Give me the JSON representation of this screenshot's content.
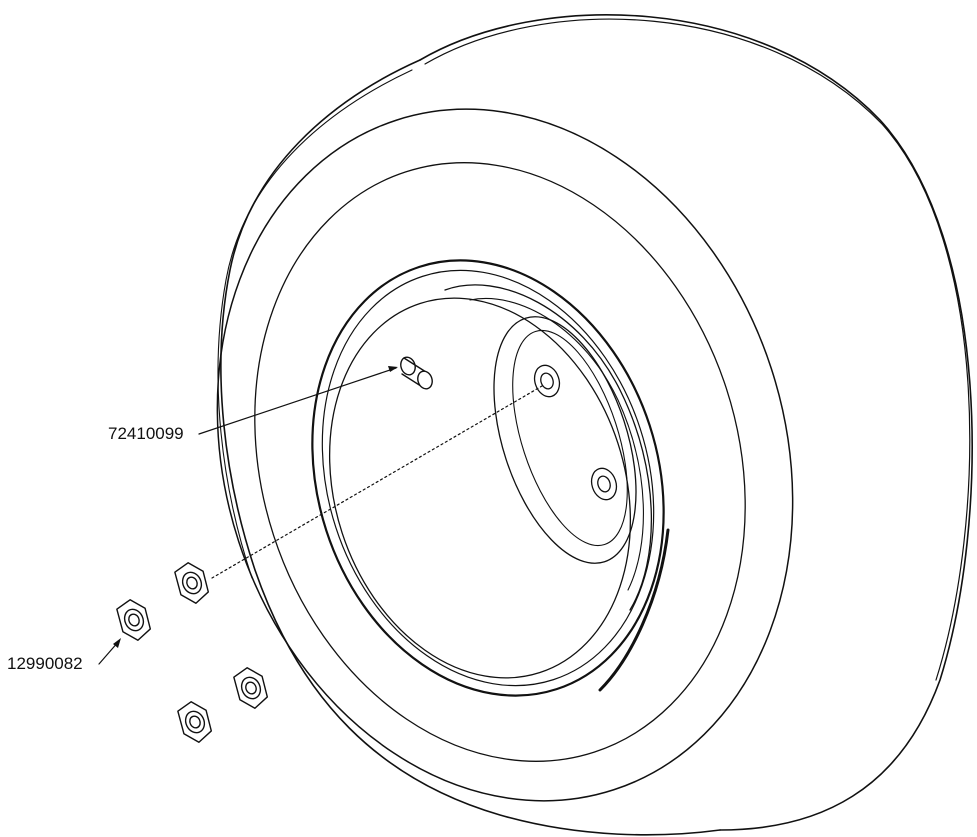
{
  "diagram": {
    "callouts": [
      {
        "part_number": "72410099",
        "part": "valve-stem"
      },
      {
        "part_number": "12990082",
        "part": "lug-nut"
      }
    ],
    "colors": {
      "line": "#111111",
      "background": "#ffffff"
    }
  }
}
